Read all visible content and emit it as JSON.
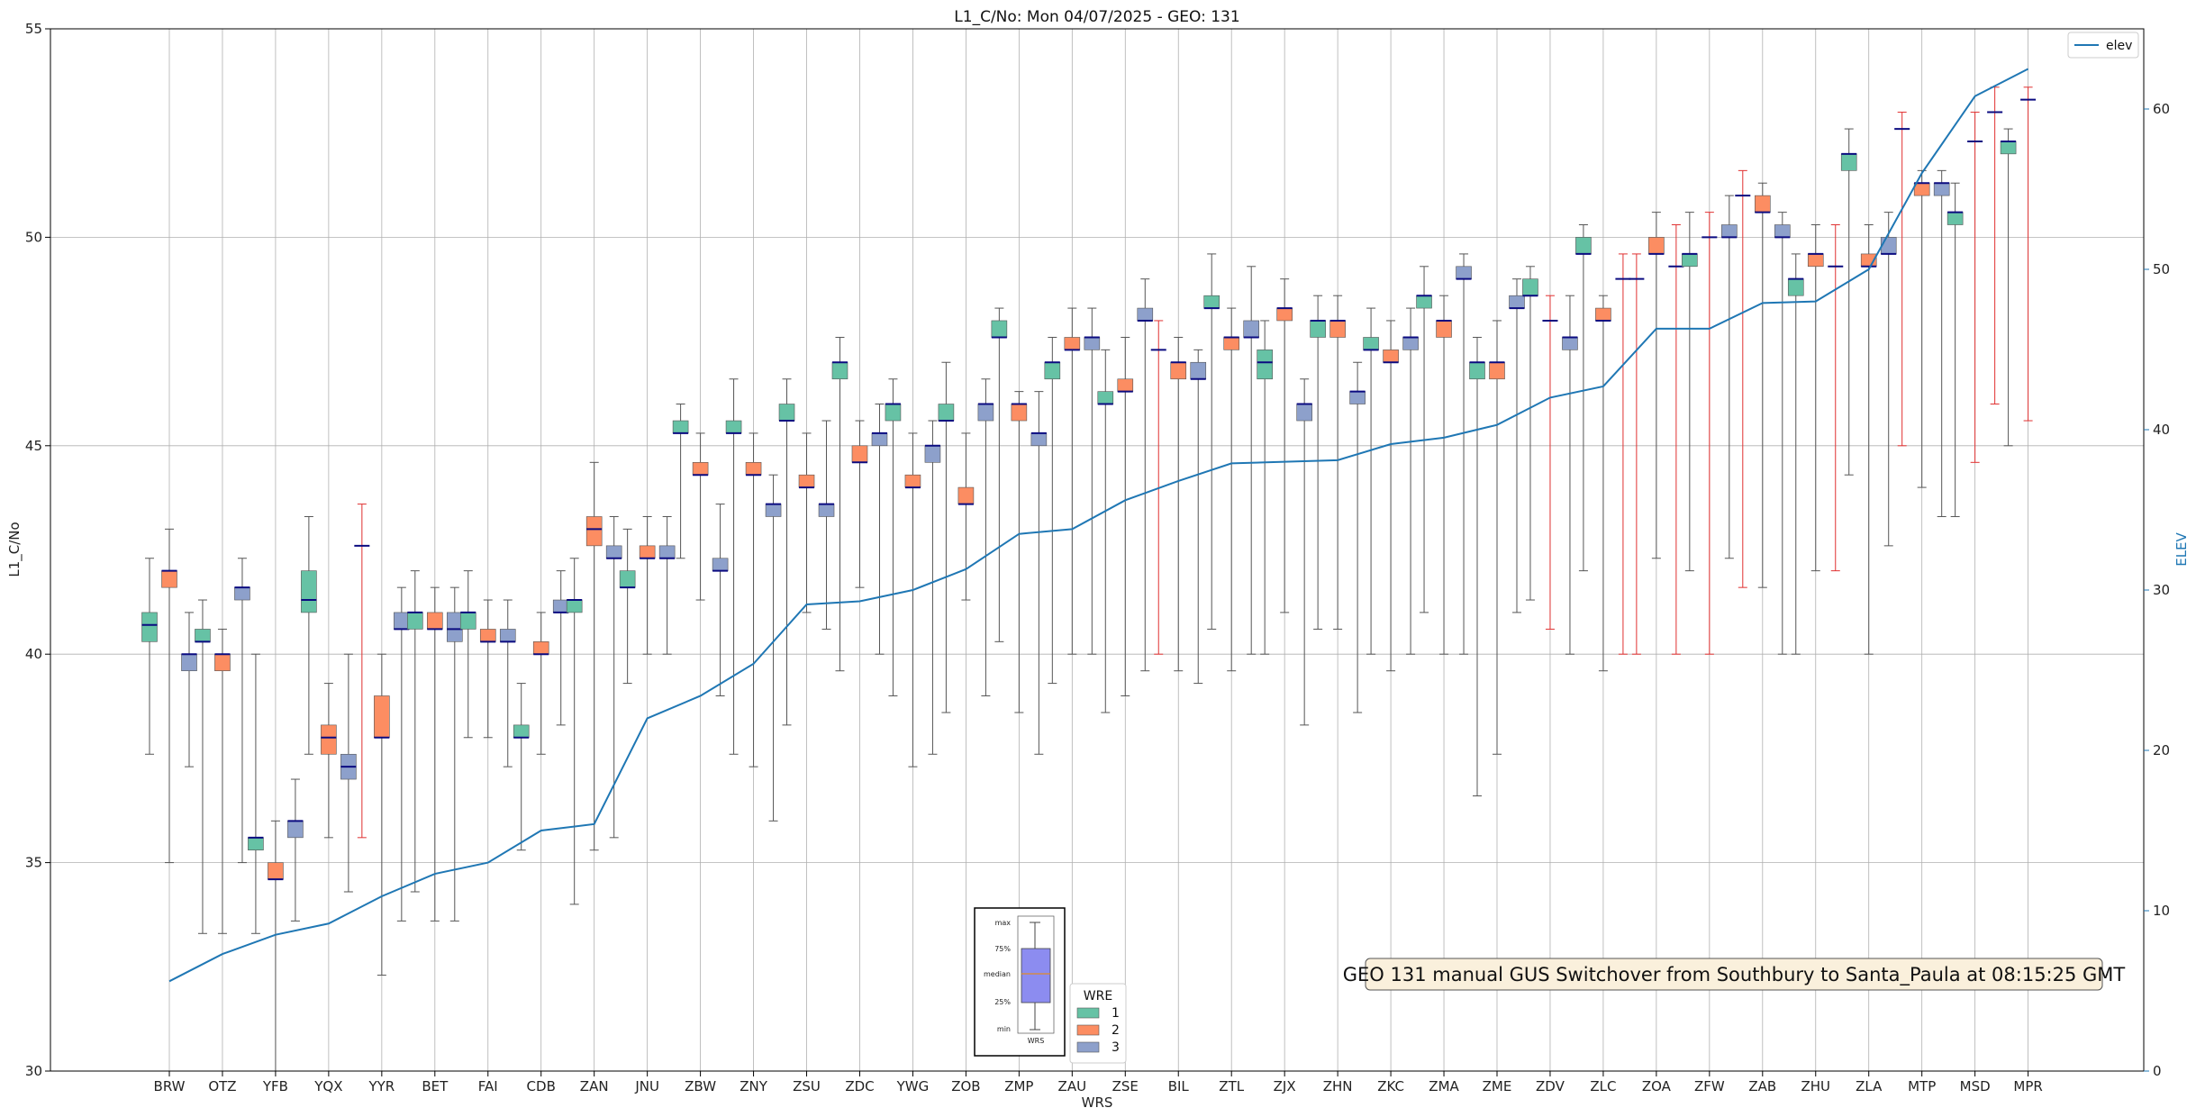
{
  "chart_data": {
    "type": "box",
    "title": "L1_C/No: Mon 04/07/2025 - GEO: 131",
    "xlabel": "WRS",
    "ylabel": "L1_C/No",
    "y2label": "ELEV",
    "ylim": [
      30,
      55
    ],
    "y2lim": [
      0,
      65
    ],
    "yticks": [
      "30",
      "35",
      "40",
      "45",
      "50",
      "55"
    ],
    "y2ticks": [
      "0",
      "10",
      "20",
      "30",
      "40",
      "50",
      "60"
    ],
    "grid": true,
    "categories": [
      "BRW",
      "OTZ",
      "YFB",
      "YQX",
      "YYR",
      "BET",
      "FAI",
      "CDB",
      "ZAN",
      "JNU",
      "ZBW",
      "ZNY",
      "ZSU",
      "ZDC",
      "YWG",
      "ZOB",
      "ZMP",
      "ZAU",
      "ZSE",
      "BIL",
      "ZTL",
      "ZJX",
      "ZHN",
      "ZKC",
      "ZMA",
      "ZME",
      "ZDV",
      "ZLC",
      "ZOA",
      "ZFW",
      "ZAB",
      "ZHU",
      "ZLA",
      "MTP",
      "MSD",
      "MPR"
    ],
    "wre_colors": {
      "1": "#66c2a5",
      "2": "#fc8d62",
      "3": "#8da0cb"
    },
    "elev_line": {
      "name": "elev",
      "color": "#1f77b4",
      "values": [
        5.6,
        7.3,
        8.5,
        9.2,
        10.9,
        12.3,
        13.0,
        15.0,
        15.4,
        22.0,
        23.4,
        25.4,
        29.1,
        29.3,
        30.0,
        31.3,
        33.5,
        33.8,
        35.6,
        36.8,
        37.9,
        38.0,
        38.1,
        39.1,
        39.5,
        40.3,
        42.0,
        42.7,
        46.3,
        46.3,
        47.9,
        48.0,
        50.0,
        56.0,
        60.8,
        62.5
      ]
    },
    "series": [
      {
        "cat": "BRW",
        "wre": 1,
        "min": 37.6,
        "q1": 40.3,
        "median": 40.7,
        "q3": 41.0,
        "max": 42.3
      },
      {
        "cat": "BRW",
        "wre": 2,
        "min": 35.0,
        "q1": 41.6,
        "median": 42.0,
        "q3": 42.0,
        "max": 43.0
      },
      {
        "cat": "BRW",
        "wre": 3,
        "min": 37.3,
        "q1": 39.6,
        "median": 40.0,
        "q3": 40.0,
        "max": 41.0
      },
      {
        "cat": "OTZ",
        "wre": 1,
        "min": 33.3,
        "q1": 40.3,
        "median": 40.3,
        "q3": 40.6,
        "max": 41.3
      },
      {
        "cat": "OTZ",
        "wre": 2,
        "min": 33.3,
        "q1": 39.6,
        "median": 40.0,
        "q3": 40.0,
        "max": 40.6
      },
      {
        "cat": "OTZ",
        "wre": 3,
        "min": 35.0,
        "q1": 41.3,
        "median": 41.6,
        "q3": 41.6,
        "max": 42.3
      },
      {
        "cat": "YFB",
        "wre": 1,
        "min": 33.3,
        "q1": 35.3,
        "median": 35.6,
        "q3": 35.6,
        "max": 40.0
      },
      {
        "cat": "YFB",
        "wre": 2,
        "min": 30.0,
        "q1": 34.6,
        "median": 34.6,
        "q3": 35.0,
        "max": 36.0
      },
      {
        "cat": "YFB",
        "wre": 3,
        "min": 33.6,
        "q1": 35.6,
        "median": 36.0,
        "q3": 36.0,
        "max": 37.0
      },
      {
        "cat": "YQX",
        "wre": 1,
        "min": 37.6,
        "q1": 41.0,
        "median": 41.3,
        "q3": 42.0,
        "max": 43.3
      },
      {
        "cat": "YQX",
        "wre": 2,
        "min": 35.6,
        "q1": 37.6,
        "median": 38.0,
        "q3": 38.3,
        "max": 39.3
      },
      {
        "cat": "YQX",
        "wre": 3,
        "min": 34.3,
        "q1": 37.0,
        "median": 37.3,
        "q3": 37.6,
        "max": 40.0
      },
      {
        "cat": "YYR",
        "wre": 1,
        "min": 35.6,
        "q1": 42.6,
        "median": 42.6,
        "q3": 42.6,
        "max": 43.6
      },
      {
        "cat": "YYR",
        "wre": 2,
        "min": 32.3,
        "q1": 38.0,
        "median": 38.0,
        "q3": 39.0,
        "max": 40.0
      },
      {
        "cat": "YYR",
        "wre": 3,
        "min": 33.6,
        "q1": 40.6,
        "median": 40.6,
        "q3": 41.0,
        "max": 41.6
      },
      {
        "cat": "BET",
        "wre": 1,
        "min": 34.3,
        "q1": 40.6,
        "median": 41.0,
        "q3": 41.0,
        "max": 42.0
      },
      {
        "cat": "BET",
        "wre": 2,
        "min": 33.6,
        "q1": 40.6,
        "median": 40.6,
        "q3": 41.0,
        "max": 41.6
      },
      {
        "cat": "BET",
        "wre": 3,
        "min": 33.6,
        "q1": 40.3,
        "median": 40.6,
        "q3": 41.0,
        "max": 41.6
      },
      {
        "cat": "FAI",
        "wre": 1,
        "min": 38.0,
        "q1": 40.6,
        "median": 41.0,
        "q3": 41.0,
        "max": 42.0
      },
      {
        "cat": "FAI",
        "wre": 2,
        "min": 38.0,
        "q1": 40.3,
        "median": 40.3,
        "q3": 40.6,
        "max": 41.3
      },
      {
        "cat": "FAI",
        "wre": 3,
        "min": 37.3,
        "q1": 40.3,
        "median": 40.3,
        "q3": 40.6,
        "max": 41.3
      },
      {
        "cat": "CDB",
        "wre": 1,
        "min": 35.3,
        "q1": 38.0,
        "median": 38.0,
        "q3": 38.3,
        "max": 39.3
      },
      {
        "cat": "CDB",
        "wre": 2,
        "min": 37.6,
        "q1": 40.0,
        "median": 40.0,
        "q3": 40.3,
        "max": 41.0
      },
      {
        "cat": "CDB",
        "wre": 3,
        "min": 38.3,
        "q1": 41.0,
        "median": 41.0,
        "q3": 41.3,
        "max": 42.0
      },
      {
        "cat": "ZAN",
        "wre": 1,
        "min": 34.0,
        "q1": 41.0,
        "median": 41.3,
        "q3": 41.3,
        "max": 42.3
      },
      {
        "cat": "ZAN",
        "wre": 2,
        "min": 35.3,
        "q1": 42.6,
        "median": 43.0,
        "q3": 43.3,
        "max": 44.6
      },
      {
        "cat": "ZAN",
        "wre": 3,
        "min": 35.6,
        "q1": 42.3,
        "median": 42.3,
        "q3": 42.6,
        "max": 43.3
      },
      {
        "cat": "JNU",
        "wre": 1,
        "min": 39.3,
        "q1": 41.6,
        "median": 41.6,
        "q3": 42.0,
        "max": 43.0
      },
      {
        "cat": "JNU",
        "wre": 2,
        "min": 40.0,
        "q1": 42.3,
        "median": 42.3,
        "q3": 42.6,
        "max": 43.3
      },
      {
        "cat": "JNU",
        "wre": 3,
        "min": 40.0,
        "q1": 42.3,
        "median": 42.3,
        "q3": 42.6,
        "max": 43.3
      },
      {
        "cat": "ZBW",
        "wre": 1,
        "min": 42.3,
        "q1": 45.3,
        "median": 45.3,
        "q3": 45.6,
        "max": 46.0
      },
      {
        "cat": "ZBW",
        "wre": 2,
        "min": 41.3,
        "q1": 44.3,
        "median": 44.3,
        "q3": 44.6,
        "max": 45.3
      },
      {
        "cat": "ZBW",
        "wre": 3,
        "min": 39.0,
        "q1": 42.0,
        "median": 42.0,
        "q3": 42.3,
        "max": 43.6
      },
      {
        "cat": "ZNY",
        "wre": 1,
        "min": 37.6,
        "q1": 45.3,
        "median": 45.3,
        "q3": 45.6,
        "max": 46.6
      },
      {
        "cat": "ZNY",
        "wre": 2,
        "min": 37.3,
        "q1": 44.3,
        "median": 44.3,
        "q3": 44.6,
        "max": 45.3
      },
      {
        "cat": "ZNY",
        "wre": 3,
        "min": 36.0,
        "q1": 43.3,
        "median": 43.6,
        "q3": 43.6,
        "max": 44.3
      },
      {
        "cat": "ZSU",
        "wre": 1,
        "min": 38.3,
        "q1": 45.6,
        "median": 45.6,
        "q3": 46.0,
        "max": 46.6
      },
      {
        "cat": "ZSU",
        "wre": 2,
        "min": 41.0,
        "q1": 44.0,
        "median": 44.0,
        "q3": 44.3,
        "max": 45.3
      },
      {
        "cat": "ZSU",
        "wre": 3,
        "min": 40.6,
        "q1": 43.3,
        "median": 43.6,
        "q3": 43.6,
        "max": 45.6
      },
      {
        "cat": "ZDC",
        "wre": 1,
        "min": 39.6,
        "q1": 46.6,
        "median": 47.0,
        "q3": 47.0,
        "max": 47.6
      },
      {
        "cat": "ZDC",
        "wre": 2,
        "min": 41.6,
        "q1": 44.6,
        "median": 44.6,
        "q3": 45.0,
        "max": 45.6
      },
      {
        "cat": "ZDC",
        "wre": 3,
        "min": 40.0,
        "q1": 45.0,
        "median": 45.3,
        "q3": 45.3,
        "max": 46.0
      },
      {
        "cat": "YWG",
        "wre": 1,
        "min": 39.0,
        "q1": 45.6,
        "median": 46.0,
        "q3": 46.0,
        "max": 46.6
      },
      {
        "cat": "YWG",
        "wre": 2,
        "min": 37.3,
        "q1": 44.0,
        "median": 44.0,
        "q3": 44.3,
        "max": 45.3
      },
      {
        "cat": "YWG",
        "wre": 3,
        "min": 37.6,
        "q1": 44.6,
        "median": 45.0,
        "q3": 45.0,
        "max": 45.6
      },
      {
        "cat": "ZOB",
        "wre": 1,
        "min": 38.6,
        "q1": 45.6,
        "median": 45.6,
        "q3": 46.0,
        "max": 47.0
      },
      {
        "cat": "ZOB",
        "wre": 2,
        "min": 41.3,
        "q1": 43.6,
        "median": 43.6,
        "q3": 44.0,
        "max": 45.3
      },
      {
        "cat": "ZOB",
        "wre": 3,
        "min": 39.0,
        "q1": 45.6,
        "median": 46.0,
        "q3": 46.0,
        "max": 46.6
      },
      {
        "cat": "ZMP",
        "wre": 1,
        "min": 40.3,
        "q1": 47.6,
        "median": 47.6,
        "q3": 48.0,
        "max": 48.3
      },
      {
        "cat": "ZMP",
        "wre": 2,
        "min": 38.6,
        "q1": 45.6,
        "median": 46.0,
        "q3": 46.0,
        "max": 46.3
      },
      {
        "cat": "ZMP",
        "wre": 3,
        "min": 37.6,
        "q1": 45.0,
        "median": 45.3,
        "q3": 45.3,
        "max": 46.3
      },
      {
        "cat": "ZAU",
        "wre": 1,
        "min": 39.3,
        "q1": 46.6,
        "median": 47.0,
        "q3": 47.0,
        "max": 47.6
      },
      {
        "cat": "ZAU",
        "wre": 2,
        "min": 40.0,
        "q1": 47.3,
        "median": 47.3,
        "q3": 47.6,
        "max": 48.3
      },
      {
        "cat": "ZAU",
        "wre": 3,
        "min": 40.0,
        "q1": 47.3,
        "median": 47.6,
        "q3": 47.6,
        "max": 48.3
      },
      {
        "cat": "ZSE",
        "wre": 1,
        "min": 38.6,
        "q1": 46.0,
        "median": 46.0,
        "q3": 46.3,
        "max": 47.3
      },
      {
        "cat": "ZSE",
        "wre": 2,
        "min": 39.0,
        "q1": 46.3,
        "median": 46.3,
        "q3": 46.6,
        "max": 47.6
      },
      {
        "cat": "ZSE",
        "wre": 3,
        "min": 39.6,
        "q1": 48.0,
        "median": 48.0,
        "q3": 48.3,
        "max": 49.0
      },
      {
        "cat": "BIL",
        "wre": 1,
        "min": 40.0,
        "q1": 47.3,
        "median": 47.3,
        "q3": 47.3,
        "max": 48.0
      },
      {
        "cat": "BIL",
        "wre": 2,
        "min": 39.6,
        "q1": 46.6,
        "median": 47.0,
        "q3": 47.0,
        "max": 47.6
      },
      {
        "cat": "BIL",
        "wre": 3,
        "min": 39.3,
        "q1": 46.6,
        "median": 46.6,
        "q3": 47.0,
        "max": 47.3
      },
      {
        "cat": "ZTL",
        "wre": 1,
        "min": 40.6,
        "q1": 48.3,
        "median": 48.3,
        "q3": 48.6,
        "max": 49.6
      },
      {
        "cat": "ZTL",
        "wre": 2,
        "min": 39.6,
        "q1": 47.3,
        "median": 47.6,
        "q3": 47.6,
        "max": 48.3
      },
      {
        "cat": "ZTL",
        "wre": 3,
        "min": 40.0,
        "q1": 47.6,
        "median": 47.6,
        "q3": 48.0,
        "max": 49.3
      },
      {
        "cat": "ZJX",
        "wre": 1,
        "min": 40.0,
        "q1": 46.6,
        "median": 47.0,
        "q3": 47.3,
        "max": 48.0
      },
      {
        "cat": "ZJX",
        "wre": 2,
        "min": 41.0,
        "q1": 48.0,
        "median": 48.3,
        "q3": 48.3,
        "max": 49.0
      },
      {
        "cat": "ZJX",
        "wre": 3,
        "min": 38.3,
        "q1": 45.6,
        "median": 46.0,
        "q3": 46.0,
        "max": 46.6
      },
      {
        "cat": "ZHN",
        "wre": 1,
        "min": 40.6,
        "q1": 47.6,
        "median": 48.0,
        "q3": 48.0,
        "max": 48.6
      },
      {
        "cat": "ZHN",
        "wre": 2,
        "min": 40.6,
        "q1": 47.6,
        "median": 48.0,
        "q3": 48.0,
        "max": 48.6
      },
      {
        "cat": "ZHN",
        "wre": 3,
        "min": 38.6,
        "q1": 46.0,
        "median": 46.3,
        "q3": 46.3,
        "max": 47.0
      },
      {
        "cat": "ZKC",
        "wre": 1,
        "min": 40.0,
        "q1": 47.3,
        "median": 47.3,
        "q3": 47.6,
        "max": 48.3
      },
      {
        "cat": "ZKC",
        "wre": 2,
        "min": 39.6,
        "q1": 47.0,
        "median": 47.0,
        "q3": 47.3,
        "max": 48.0
      },
      {
        "cat": "ZKC",
        "wre": 3,
        "min": 40.0,
        "q1": 47.3,
        "median": 47.6,
        "q3": 47.6,
        "max": 48.3
      },
      {
        "cat": "ZMA",
        "wre": 1,
        "min": 41.0,
        "q1": 48.3,
        "median": 48.6,
        "q3": 48.6,
        "max": 49.3
      },
      {
        "cat": "ZMA",
        "wre": 2,
        "min": 40.0,
        "q1": 47.6,
        "median": 48.0,
        "q3": 48.0,
        "max": 48.6
      },
      {
        "cat": "ZMA",
        "wre": 3,
        "min": 40.0,
        "q1": 49.0,
        "median": 49.0,
        "q3": 49.3,
        "max": 49.6
      },
      {
        "cat": "ZME",
        "wre": 1,
        "min": 36.6,
        "q1": 46.6,
        "median": 47.0,
        "q3": 47.0,
        "max": 47.6
      },
      {
        "cat": "ZME",
        "wre": 2,
        "min": 37.6,
        "q1": 46.6,
        "median": 47.0,
        "q3": 47.0,
        "max": 48.0
      },
      {
        "cat": "ZME",
        "wre": 3,
        "min": 41.0,
        "q1": 48.3,
        "median": 48.3,
        "q3": 48.6,
        "max": 49.0
      },
      {
        "cat": "ZDV",
        "wre": 1,
        "min": 41.3,
        "q1": 48.6,
        "median": 48.6,
        "q3": 49.0,
        "max": 49.3
      },
      {
        "cat": "ZDV",
        "wre": 2,
        "min": 40.6,
        "q1": 48.0,
        "median": 48.0,
        "q3": 48.0,
        "max": 48.6
      },
      {
        "cat": "ZDV",
        "wre": 3,
        "min": 40.0,
        "q1": 47.3,
        "median": 47.6,
        "q3": 47.6,
        "max": 48.6
      },
      {
        "cat": "ZLC",
        "wre": 1,
        "min": 42.0,
        "q1": 49.6,
        "median": 49.6,
        "q3": 50.0,
        "max": 50.3
      },
      {
        "cat": "ZLC",
        "wre": 2,
        "min": 39.6,
        "q1": 48.0,
        "median": 48.0,
        "q3": 48.3,
        "max": 48.6
      },
      {
        "cat": "ZLC",
        "wre": 3,
        "min": 40.0,
        "q1": 49.0,
        "median": 49.0,
        "q3": 49.0,
        "max": 49.6
      },
      {
        "cat": "ZOA",
        "wre": 1,
        "min": 40.0,
        "q1": 49.0,
        "median": 49.0,
        "q3": 49.0,
        "max": 49.6
      },
      {
        "cat": "ZOA",
        "wre": 2,
        "min": 42.3,
        "q1": 49.6,
        "median": 49.6,
        "q3": 50.0,
        "max": 50.6
      },
      {
        "cat": "ZOA",
        "wre": 3,
        "min": 40.0,
        "q1": 49.3,
        "median": 49.3,
        "q3": 49.3,
        "max": 50.3
      },
      {
        "cat": "ZFW",
        "wre": 1,
        "min": 42.0,
        "q1": 49.3,
        "median": 49.6,
        "q3": 49.6,
        "max": 50.6
      },
      {
        "cat": "ZFW",
        "wre": 2,
        "min": 40.0,
        "q1": 50.0,
        "median": 50.0,
        "q3": 50.0,
        "max": 50.6
      },
      {
        "cat": "ZFW",
        "wre": 3,
        "min": 42.3,
        "q1": 50.0,
        "median": 50.0,
        "q3": 50.3,
        "max": 51.0
      },
      {
        "cat": "ZAB",
        "wre": 1,
        "min": 41.6,
        "q1": 51.0,
        "median": 51.0,
        "q3": 51.0,
        "max": 51.6
      },
      {
        "cat": "ZAB",
        "wre": 2,
        "min": 41.6,
        "q1": 50.6,
        "median": 50.6,
        "q3": 51.0,
        "max": 51.3
      },
      {
        "cat": "ZAB",
        "wre": 3,
        "min": 40.0,
        "q1": 50.0,
        "median": 50.0,
        "q3": 50.3,
        "max": 50.6
      },
      {
        "cat": "ZHU",
        "wre": 1,
        "min": 40.0,
        "q1": 48.6,
        "median": 49.0,
        "q3": 49.0,
        "max": 49.6
      },
      {
        "cat": "ZHU",
        "wre": 2,
        "min": 42.0,
        "q1": 49.3,
        "median": 49.6,
        "q3": 49.6,
        "max": 50.3
      },
      {
        "cat": "ZHU",
        "wre": 3,
        "min": 42.0,
        "q1": 49.3,
        "median": 49.3,
        "q3": 49.3,
        "max": 50.3
      },
      {
        "cat": "ZLA",
        "wre": 1,
        "min": 44.3,
        "q1": 51.6,
        "median": 52.0,
        "q3": 52.0,
        "max": 52.6
      },
      {
        "cat": "ZLA",
        "wre": 2,
        "min": 40.0,
        "q1": 49.3,
        "median": 49.3,
        "q3": 49.6,
        "max": 50.3
      },
      {
        "cat": "ZLA",
        "wre": 3,
        "min": 42.6,
        "q1": 49.6,
        "median": 49.6,
        "q3": 50.0,
        "max": 50.6
      },
      {
        "cat": "MTP",
        "wre": 1,
        "min": 45.0,
        "q1": 52.6,
        "median": 52.6,
        "q3": 52.6,
        "max": 53.0
      },
      {
        "cat": "MTP",
        "wre": 2,
        "min": 44.0,
        "q1": 51.0,
        "median": 51.3,
        "q3": 51.3,
        "max": 51.6
      },
      {
        "cat": "MTP",
        "wre": 3,
        "min": 43.3,
        "q1": 51.0,
        "median": 51.3,
        "q3": 51.3,
        "max": 51.6
      },
      {
        "cat": "MSD",
        "wre": 1,
        "min": 43.3,
        "q1": 50.3,
        "median": 50.6,
        "q3": 50.6,
        "max": 51.3
      },
      {
        "cat": "MSD",
        "wre": 2,
        "min": 44.6,
        "q1": 52.3,
        "median": 52.3,
        "q3": 52.3,
        "max": 53.0
      },
      {
        "cat": "MSD",
        "wre": 3,
        "min": 46.0,
        "q1": 53.0,
        "median": 53.0,
        "q3": 53.0,
        "max": 53.6
      },
      {
        "cat": "MPR",
        "wre": 1,
        "min": 45.0,
        "q1": 52.0,
        "median": 52.3,
        "q3": 52.3,
        "max": 52.6
      },
      {
        "cat": "MPR",
        "wre": 2,
        "min": 45.6,
        "q1": 53.3,
        "median": 53.3,
        "q3": 53.3,
        "max": 53.6
      }
    ],
    "legend": {
      "title": "WRE",
      "entries": [
        "1",
        "2",
        "3"
      ],
      "placement": "bottom-center"
    },
    "legend2": {
      "entries": [
        "elev"
      ],
      "placement": "top-right"
    },
    "key_labels": [
      "max",
      "75%",
      "median",
      "25%",
      "min"
    ],
    "key_xlabel": "WRS",
    "annotation": "GEO 131 manual GUS Switchover from Southbury to Santa_Paula at 08:15:25 GMT"
  }
}
